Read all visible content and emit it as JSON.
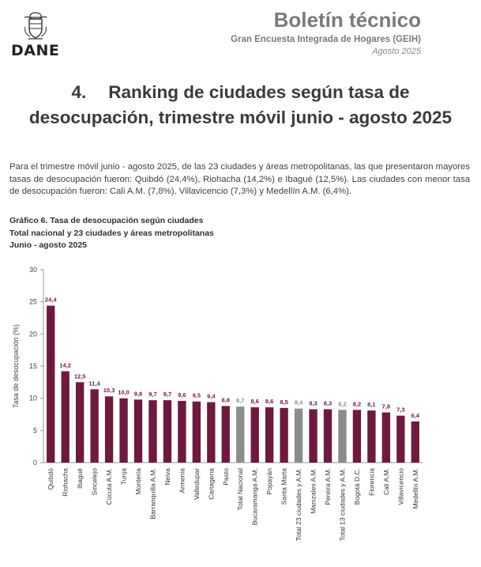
{
  "logo": {
    "name": "DANE"
  },
  "header": {
    "title": "Boletín técnico",
    "subtitle": "Gran Encuesta Integrada de Hogares (GEIH)",
    "date": "Agosto 2025"
  },
  "section": {
    "number": "4.",
    "title_line1": "Ranking de ciudades según tasa de",
    "title_line2": "desocupación, trimestre móvil junio - agosto 2025"
  },
  "paragraph": "Para el trimestre móvil junio - agosto 2025, de las 23 ciudades y áreas metropolitanas, las que presentaron mayores tasas de desocupación fueron: Quibdó (24,4%), Riohacha (14,2%) e Ibagué (12,5%). Las ciudades con menor tasa de desocupación fueron: Cali A.M. (7,8%), Villavicencio (7,3%) y Medellín A.M. (6,4%).",
  "figure": {
    "caption1": "Gráfico 6. Tasa de desocupación según ciudades",
    "caption2": "Total nacional y 23 ciudades y áreas metropolitanas",
    "caption3": "Junio - agosto 2025"
  },
  "chart_data": {
    "type": "bar",
    "title": "Gráfico 6. Tasa de desocupación según ciudades",
    "ylabel": "Tasa de desocupación (%)",
    "xlabel": "",
    "ylim": [
      0,
      30
    ],
    "yticks": [
      0,
      5,
      10,
      15,
      20,
      25,
      30
    ],
    "grid": false,
    "colors": {
      "city": "#6d1a3e",
      "total": "#8c8c8c",
      "city_label": "#6d1a3e",
      "total_label": "#8c8c8c"
    },
    "categories": [
      "Quibdó",
      "Riohacha",
      "Ibagué",
      "Sincelejo",
      "Cúcuta A.M.",
      "Tunja",
      "Montería",
      "Barranquilla A.M.",
      "Neiva",
      "Armenia",
      "Valledupar",
      "Cartagena",
      "Pasto",
      "Total Nacional",
      "Bucaramanga A.M.",
      "Popayán",
      "Santa Marta",
      "Total 23 ciudades y A.M.",
      "Manizales A.M.",
      "Pereira A.M.",
      "Total 13 ciudades y A.M.",
      "Bogotá D.C.",
      "Florencia",
      "Cali A.M.",
      "Villavicencio",
      "Medellín A.M."
    ],
    "values": [
      24.4,
      14.2,
      12.5,
      11.4,
      10.3,
      10.0,
      9.8,
      9.7,
      9.7,
      9.6,
      9.5,
      9.4,
      8.8,
      8.7,
      8.6,
      8.6,
      8.5,
      8.4,
      8.3,
      8.3,
      8.2,
      8.2,
      8.1,
      7.8,
      7.3,
      6.4
    ],
    "value_labels": [
      "24,4",
      "14,2",
      "12,5",
      "11,4",
      "10,3",
      "10,0",
      "9,8",
      "9,7",
      "9,7",
      "9,6",
      "9,5",
      "9,4",
      "8,8",
      "8,7",
      "8,6",
      "8,6",
      "8,5",
      "8,4",
      "8,3",
      "8,3",
      "8,2",
      "8,2",
      "8,1",
      "7,8",
      "7,3",
      "6,4"
    ],
    "is_total": [
      false,
      false,
      false,
      false,
      false,
      false,
      false,
      false,
      false,
      false,
      false,
      false,
      false,
      true,
      false,
      false,
      false,
      true,
      false,
      false,
      true,
      false,
      false,
      false,
      false,
      false
    ]
  }
}
